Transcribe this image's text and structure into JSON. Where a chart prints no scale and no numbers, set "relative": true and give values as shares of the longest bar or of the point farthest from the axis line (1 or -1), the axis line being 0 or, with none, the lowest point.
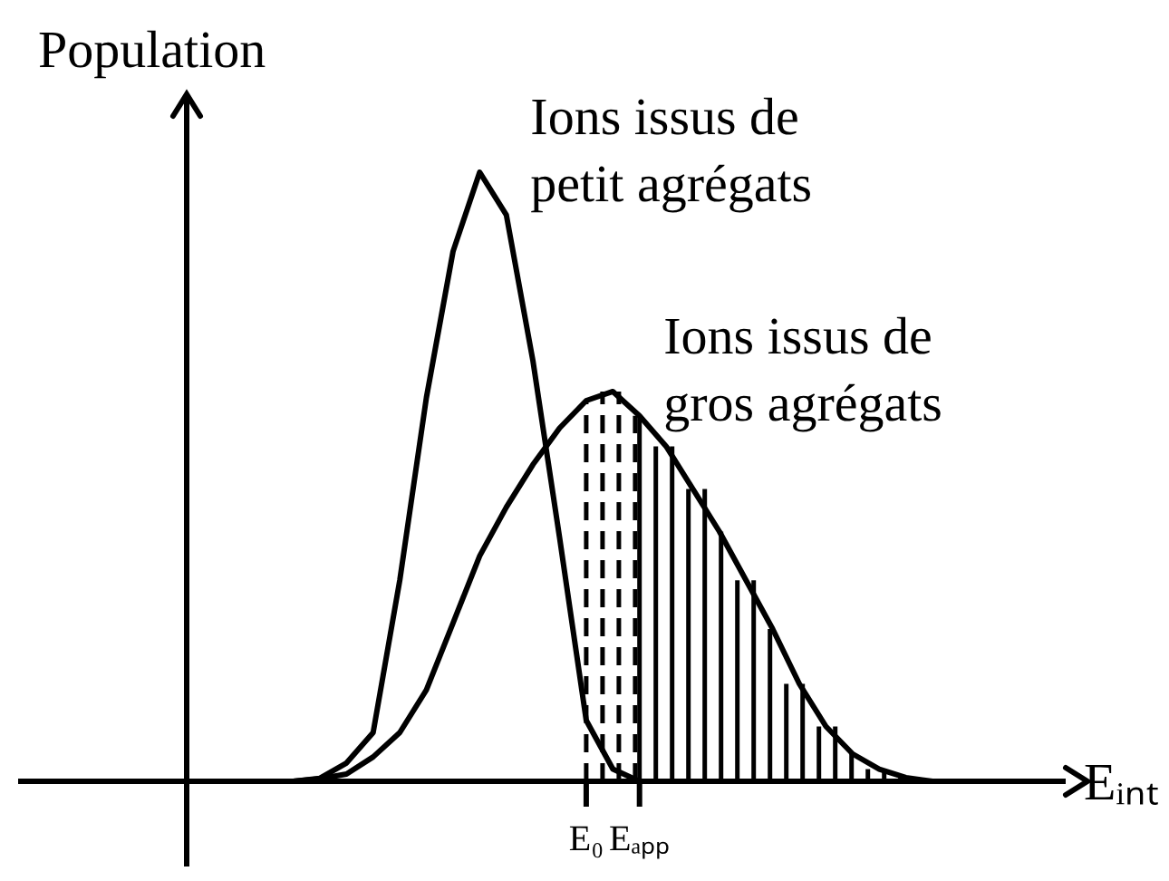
{
  "chart_data": {
    "type": "line",
    "relative": true,
    "ylabel": "Population",
    "xlabel": "Eᵢₙₜ",
    "categories": [
      null,
      null,
      null,
      null,
      null,
      null,
      null,
      null,
      null,
      null,
      null,
      null,
      null,
      null,
      null,
      "E₀",
      null,
      "Eₐₚₚ",
      null,
      null,
      null,
      null,
      null,
      null,
      null,
      null,
      null,
      null,
      null,
      null,
      null,
      null,
      null,
      null
    ],
    "series": [
      {
        "name": "Ions issus de petit agrégats",
        "color": "#000000",
        "values": [
          null,
          null,
          null,
          null,
          0,
          0.005,
          0.03,
          0.08,
          0.33,
          0.63,
          0.87,
          1,
          0.93,
          0.69,
          0.4,
          0.1,
          0.02,
          0,
          null,
          null,
          null,
          null,
          null,
          null,
          null,
          null,
          null,
          null,
          null,
          null,
          null,
          null,
          null,
          null
        ]
      },
      {
        "name": "Ions issus de gros agrégats",
        "color": "#000000",
        "values": [
          null,
          null,
          null,
          null,
          0,
          0.004,
          0.012,
          0.04,
          0.08,
          0.15,
          0.26,
          0.37,
          0.45,
          0.52,
          0.58,
          0.625,
          0.64,
          0.6,
          0.55,
          0.48,
          0.41,
          0.33,
          0.25,
          0.16,
          0.09,
          0.045,
          0.02,
          0.006,
          0,
          null,
          null,
          null,
          null,
          null
        ]
      }
    ],
    "legend": false,
    "marker": "none",
    "line_style": "solid"
  }
}
